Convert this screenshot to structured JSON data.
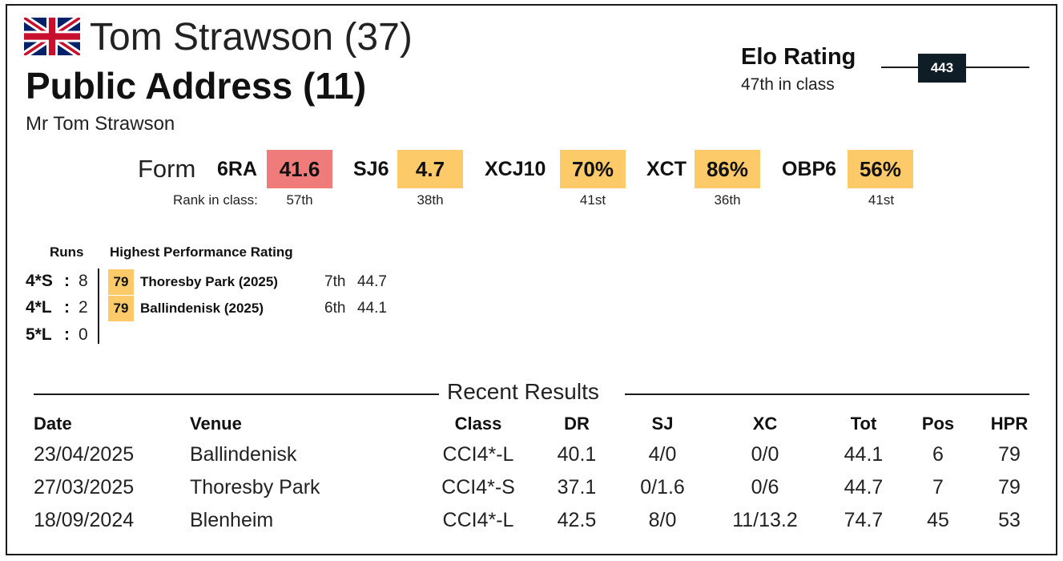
{
  "header": {
    "flag_icon": "uk-flag-icon",
    "rider": "Tom Strawson (37)",
    "horse": "Public Address (11)",
    "owner": "Mr Tom Strawson"
  },
  "elo": {
    "label": "Elo Rating",
    "rank_text": "47th in class",
    "value": "443"
  },
  "form": {
    "label": "Form",
    "rank_label": "Rank in class:",
    "stats": [
      {
        "name": "6RA",
        "value": "41.6",
        "rank": "57th",
        "color": "#ef7b7b"
      },
      {
        "name": "SJ6",
        "value": "4.7",
        "rank": "38th",
        "color": "#fdca6a"
      },
      {
        "name": "XCJ10",
        "value": "70%",
        "rank": "41st",
        "color": "#fdca6a"
      },
      {
        "name": "XCT",
        "value": "86%",
        "rank": "36th",
        "color": "#fdca6a"
      },
      {
        "name": "OBP6",
        "value": "56%",
        "rank": "41st",
        "color": "#fdca6a"
      }
    ]
  },
  "runs": {
    "header": "Runs",
    "hpr_header": "Highest Performance Rating",
    "rows": [
      {
        "level": "4*S",
        "count": "8",
        "hpr": "79",
        "event": "Thoresby Park  (2025)",
        "pos": "7th",
        "score": "44.7"
      },
      {
        "level": "4*L",
        "count": "2",
        "hpr": "79",
        "event": "Ballindenisk  (2025)",
        "pos": "6th",
        "score": "44.1"
      },
      {
        "level": "5*L",
        "count": "0"
      }
    ]
  },
  "results": {
    "title": "Recent Results",
    "columns": [
      "Date",
      "Venue",
      "Class",
      "DR",
      "SJ",
      "XC",
      "Tot",
      "Pos",
      "HPR"
    ],
    "rows": [
      [
        "23/04/2025",
        "Ballindenisk",
        "CCI4*-L",
        "40.1",
        "4/0",
        "0/0",
        "44.1",
        "6",
        "79"
      ],
      [
        "27/03/2025",
        "Thoresby Park",
        "CCI4*-S",
        "37.1",
        "0/1.6",
        "0/6",
        "44.7",
        "7",
        "79"
      ],
      [
        "18/09/2024",
        "Blenheim",
        "CCI4*-L",
        "42.5",
        "8/0",
        "11/13.2",
        "74.7",
        "45",
        "53"
      ]
    ]
  }
}
